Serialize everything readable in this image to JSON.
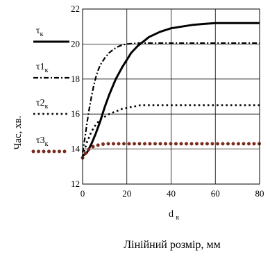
{
  "chart_data": {
    "type": "line",
    "title": "",
    "ylabel": "Час, хв.",
    "xlabel_var": "d",
    "xlabel_sub": "к",
    "xlabel_caption": "Лінійний розмір, мм",
    "xlim": [
      0,
      80
    ],
    "ylim": [
      12,
      22
    ],
    "xticks": [
      "0",
      "20",
      "40",
      "60",
      "80"
    ],
    "yticks": [
      "12",
      "14",
      "16",
      "18",
      "20",
      "22"
    ],
    "grid": true,
    "legend_position": "left, outside plot",
    "series": [
      {
        "sym": "τ",
        "idx": "",
        "sub": "к",
        "style": "solid",
        "color": "#000000",
        "x": [
          0,
          2,
          4,
          6,
          8,
          10,
          12,
          15,
          18,
          20,
          22,
          25,
          28,
          30,
          35,
          40,
          45,
          50,
          55,
          60,
          65,
          70,
          75,
          80
        ],
        "y": [
          13.6,
          13.8,
          14.3,
          14.9,
          15.6,
          16.4,
          17.1,
          18.0,
          18.7,
          19.1,
          19.5,
          19.9,
          20.2,
          20.4,
          20.7,
          20.9,
          21.0,
          21.1,
          21.15,
          21.2,
          21.2,
          21.2,
          21.2,
          21.2
        ]
      },
      {
        "sym": "τ",
        "idx": "1",
        "sub": "к",
        "style": "dashdot",
        "color": "#000000",
        "x": [
          0,
          1,
          2,
          3,
          4,
          5,
          6,
          7,
          8,
          10,
          12,
          14,
          16,
          18,
          20,
          25,
          30,
          40,
          50,
          60,
          70,
          80
        ],
        "y": [
          13.8,
          14.6,
          15.5,
          16.3,
          17.0,
          17.6,
          18.1,
          18.5,
          18.8,
          19.2,
          19.5,
          19.7,
          19.85,
          19.95,
          20.0,
          20.05,
          20.05,
          20.05,
          20.05,
          20.05,
          20.05,
          20.05
        ]
      },
      {
        "sym": "τ",
        "idx": "2",
        "sub": "к",
        "style": "dotted",
        "color": "#000000",
        "x": [
          0,
          2,
          4,
          6,
          8,
          10,
          12,
          14,
          16,
          18,
          20,
          22,
          24,
          26,
          30,
          40,
          50,
          60,
          70,
          80
        ],
        "y": [
          13.6,
          14.4,
          15.0,
          15.4,
          15.7,
          15.85,
          16.0,
          16.1,
          16.2,
          16.3,
          16.35,
          16.4,
          16.45,
          16.5,
          16.5,
          16.5,
          16.5,
          16.5,
          16.5,
          16.5
        ]
      },
      {
        "sym": "τ",
        "idx": "3",
        "sub": "к",
        "style": "bigdots",
        "color": "#7b2a1e",
        "x": [
          0,
          1,
          2,
          3,
          4,
          5,
          6,
          8,
          10,
          12,
          15,
          20,
          30,
          40,
          50,
          60,
          70,
          80
        ],
        "y": [
          13.5,
          13.7,
          13.9,
          14.0,
          14.1,
          14.15,
          14.2,
          14.25,
          14.3,
          14.3,
          14.3,
          14.3,
          14.3,
          14.3,
          14.3,
          14.3,
          14.3,
          14.3
        ]
      }
    ]
  }
}
